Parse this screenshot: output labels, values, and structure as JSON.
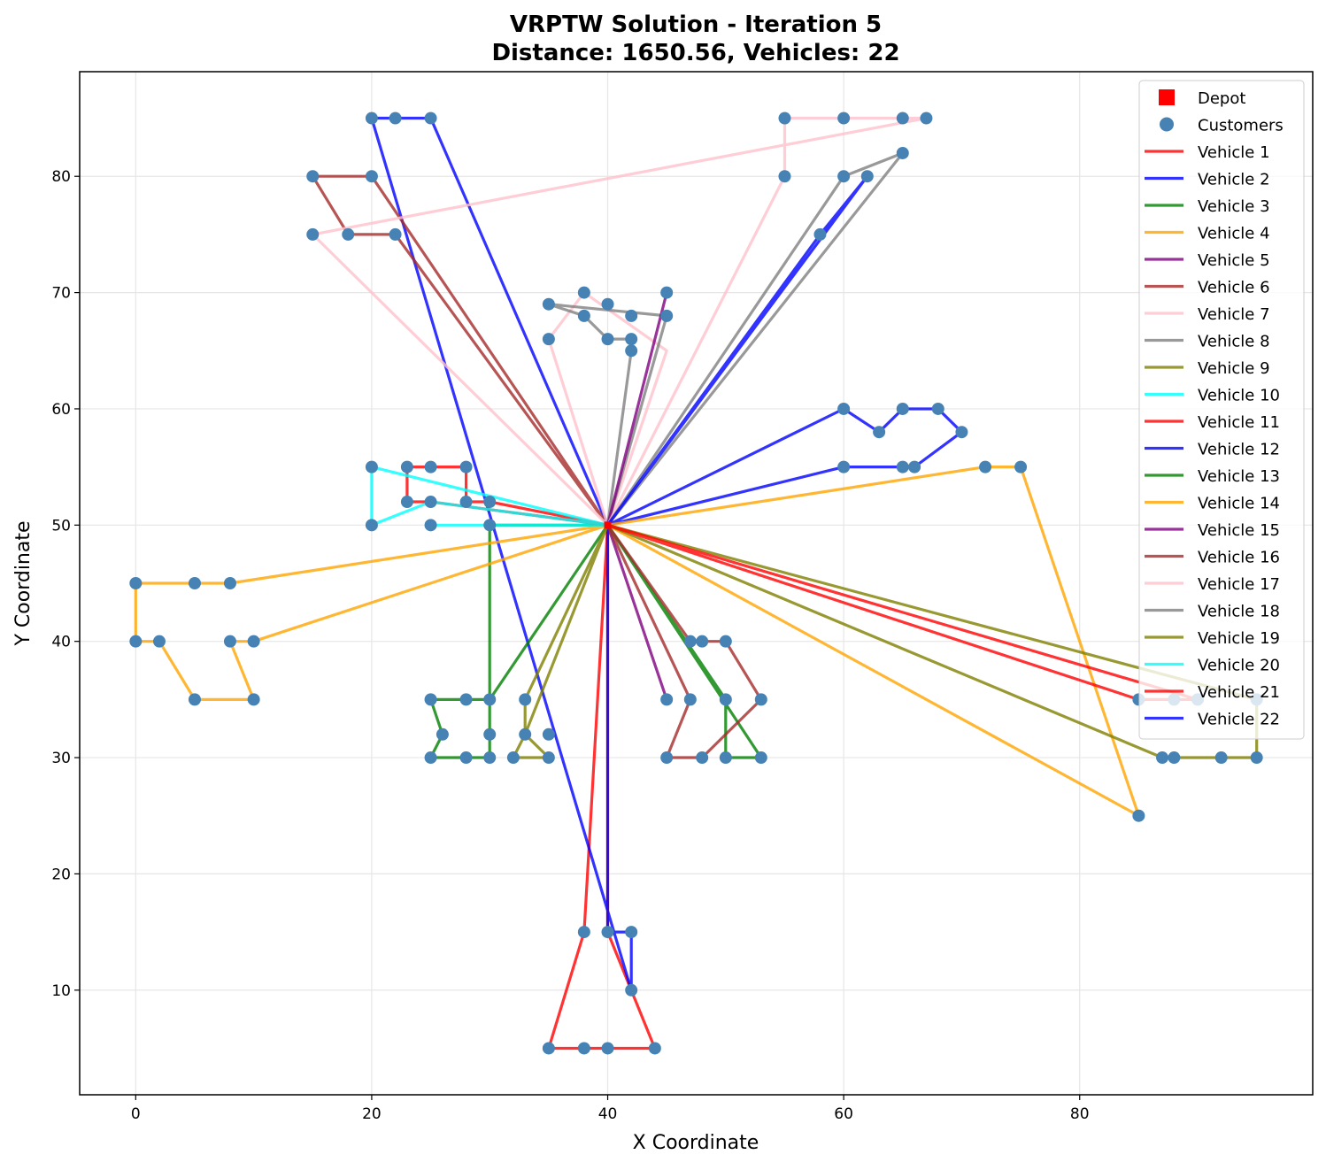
{
  "chart_data": {
    "type": "line",
    "title": "VRPTW Solution - Iteration 5",
    "subtitle": "Distance: 1650.56, Vehicles: 22",
    "xlabel": "X Coordinate",
    "ylabel": "Y Coordinate",
    "xlim": [
      -4.75,
      99.75
    ],
    "ylim": [
      1.0,
      89.0
    ],
    "xticks": [
      0,
      20,
      40,
      60,
      80
    ],
    "yticks": [
      10,
      20,
      30,
      40,
      50,
      60,
      70,
      80
    ],
    "grid": true,
    "legend_position": "top-right",
    "depot": {
      "name": "Depot",
      "x": 40,
      "y": 50,
      "color": "#ff0000"
    },
    "customers": {
      "name": "Customers",
      "color": "#4682b4",
      "points": [
        [
          45,
          68
        ],
        [
          45,
          70
        ],
        [
          42,
          66
        ],
        [
          42,
          68
        ],
        [
          42,
          65
        ],
        [
          40,
          69
        ],
        [
          40,
          66
        ],
        [
          38,
          68
        ],
        [
          38,
          70
        ],
        [
          35,
          66
        ],
        [
          35,
          69
        ],
        [
          25,
          85
        ],
        [
          22,
          75
        ],
        [
          22,
          85
        ],
        [
          20,
          80
        ],
        [
          20,
          85
        ],
        [
          18,
          75
        ],
        [
          15,
          75
        ],
        [
          15,
          80
        ],
        [
          30,
          50
        ],
        [
          30,
          52
        ],
        [
          28,
          52
        ],
        [
          28,
          55
        ],
        [
          25,
          50
        ],
        [
          25,
          52
        ],
        [
          25,
          55
        ],
        [
          23,
          52
        ],
        [
          23,
          55
        ],
        [
          20,
          50
        ],
        [
          20,
          55
        ],
        [
          10,
          35
        ],
        [
          10,
          40
        ],
        [
          8,
          40
        ],
        [
          8,
          45
        ],
        [
          5,
          35
        ],
        [
          5,
          45
        ],
        [
          2,
          40
        ],
        [
          0,
          40
        ],
        [
          0,
          45
        ],
        [
          35,
          30
        ],
        [
          35,
          32
        ],
        [
          33,
          32
        ],
        [
          33,
          35
        ],
        [
          32,
          30
        ],
        [
          30,
          30
        ],
        [
          30,
          32
        ],
        [
          30,
          35
        ],
        [
          28,
          30
        ],
        [
          28,
          35
        ],
        [
          26,
          32
        ],
        [
          25,
          30
        ],
        [
          25,
          35
        ],
        [
          44,
          5
        ],
        [
          42,
          10
        ],
        [
          42,
          15
        ],
        [
          40,
          5
        ],
        [
          40,
          15
        ],
        [
          38,
          5
        ],
        [
          38,
          15
        ],
        [
          35,
          5
        ],
        [
          95,
          30
        ],
        [
          95,
          35
        ],
        [
          92,
          30
        ],
        [
          90,
          35
        ],
        [
          88,
          30
        ],
        [
          88,
          35
        ],
        [
          87,
          30
        ],
        [
          85,
          25
        ],
        [
          85,
          35
        ],
        [
          67,
          85
        ],
        [
          65,
          85
        ],
        [
          65,
          82
        ],
        [
          62,
          80
        ],
        [
          60,
          80
        ],
        [
          60,
          85
        ],
        [
          58,
          75
        ],
        [
          55,
          80
        ],
        [
          55,
          85
        ],
        [
          72,
          55
        ],
        [
          70,
          58
        ],
        [
          68,
          60
        ],
        [
          66,
          55
        ],
        [
          65,
          55
        ],
        [
          65,
          60
        ],
        [
          63,
          58
        ],
        [
          60,
          55
        ],
        [
          60,
          60
        ],
        [
          75,
          55
        ],
        [
          45,
          30
        ],
        [
          45,
          35
        ],
        [
          47,
          35
        ],
        [
          47,
          40
        ],
        [
          48,
          30
        ],
        [
          48,
          40
        ],
        [
          50,
          30
        ],
        [
          50,
          35
        ],
        [
          50,
          40
        ],
        [
          53,
          30
        ],
        [
          53,
          35
        ]
      ]
    },
    "series": [
      {
        "name": "Vehicle 1",
        "color": "#ff0000",
        "points": [
          [
            40,
            50
          ],
          [
            38,
            15
          ],
          [
            35,
            5
          ],
          [
            38,
            5
          ],
          [
            40,
            5
          ],
          [
            44,
            5
          ],
          [
            40,
            15
          ],
          [
            40,
            50
          ]
        ]
      },
      {
        "name": "Vehicle 2",
        "color": "#0000ff",
        "points": [
          [
            40,
            50
          ],
          [
            25,
            85
          ],
          [
            22,
            85
          ],
          [
            20,
            85
          ],
          [
            42,
            10
          ],
          [
            42,
            15
          ],
          [
            40,
            15
          ],
          [
            40,
            50
          ]
        ]
      },
      {
        "name": "Vehicle 3",
        "color": "#008000",
        "points": [
          [
            40,
            50
          ],
          [
            30,
            35
          ],
          [
            28,
            35
          ],
          [
            25,
            35
          ],
          [
            26,
            32
          ],
          [
            25,
            30
          ],
          [
            28,
            30
          ],
          [
            30,
            30
          ],
          [
            30,
            32
          ],
          [
            30,
            50
          ],
          [
            40,
            50
          ]
        ]
      },
      {
        "name": "Vehicle 4",
        "color": "#ffa500",
        "points": [
          [
            40,
            50
          ],
          [
            8,
            45
          ],
          [
            5,
            45
          ],
          [
            0,
            45
          ],
          [
            0,
            40
          ],
          [
            2,
            40
          ],
          [
            5,
            35
          ],
          [
            10,
            35
          ],
          [
            8,
            40
          ],
          [
            10,
            40
          ],
          [
            40,
            50
          ]
        ]
      },
      {
        "name": "Vehicle 5",
        "color": "#800080",
        "points": [
          [
            40,
            50
          ],
          [
            45,
            35
          ],
          [
            40,
            50
          ]
        ]
      },
      {
        "name": "Vehicle 6",
        "color": "#a52a2a",
        "points": [
          [
            40,
            50
          ],
          [
            22,
            75
          ],
          [
            18,
            75
          ],
          [
            15,
            80
          ],
          [
            20,
            80
          ],
          [
            40,
            50
          ]
        ]
      },
      {
        "name": "Vehicle 7",
        "color": "#ffc0cb",
        "points": [
          [
            40,
            50
          ],
          [
            45,
            65
          ],
          [
            38,
            70
          ],
          [
            35,
            66
          ],
          [
            40,
            50
          ]
        ]
      },
      {
        "name": "Vehicle 8",
        "color": "#808080",
        "points": [
          [
            40,
            50
          ],
          [
            42,
            65
          ],
          [
            42,
            66
          ],
          [
            40,
            66
          ],
          [
            38,
            68
          ],
          [
            35,
            69
          ],
          [
            45,
            68
          ],
          [
            40,
            50
          ]
        ]
      },
      {
        "name": "Vehicle 9",
        "color": "#808000",
        "points": [
          [
            40,
            50
          ],
          [
            33,
            35
          ],
          [
            33,
            32
          ],
          [
            35,
            30
          ],
          [
            32,
            30
          ],
          [
            33,
            32
          ],
          [
            40,
            50
          ]
        ]
      },
      {
        "name": "Vehicle 10",
        "color": "#00ffff",
        "points": [
          [
            40,
            50
          ],
          [
            25,
            50
          ],
          [
            40,
            50
          ]
        ]
      },
      {
        "name": "Vehicle 11",
        "color": "#ff0000",
        "points": [
          [
            40,
            50
          ],
          [
            30,
            52
          ],
          [
            28,
            52
          ],
          [
            28,
            55
          ],
          [
            25,
            55
          ],
          [
            23,
            55
          ],
          [
            23,
            52
          ],
          [
            25,
            52
          ],
          [
            40,
            50
          ]
        ]
      },
      {
        "name": "Vehicle 12",
        "color": "#0000ff",
        "points": [
          [
            40,
            50
          ],
          [
            60,
            55
          ],
          [
            65,
            55
          ],
          [
            66,
            55
          ],
          [
            70,
            58
          ],
          [
            68,
            60
          ],
          [
            65,
            60
          ],
          [
            63,
            58
          ],
          [
            60,
            60
          ],
          [
            40,
            50
          ]
        ]
      },
      {
        "name": "Vehicle 13",
        "color": "#008000",
        "points": [
          [
            40,
            50
          ],
          [
            50,
            35
          ],
          [
            50,
            30
          ],
          [
            53,
            30
          ],
          [
            40,
            50
          ]
        ]
      },
      {
        "name": "Vehicle 14",
        "color": "#ffa500",
        "points": [
          [
            40,
            50
          ],
          [
            72,
            55
          ],
          [
            75,
            55
          ],
          [
            85,
            25
          ],
          [
            40,
            50
          ]
        ]
      },
      {
        "name": "Vehicle 15",
        "color": "#800080",
        "points": [
          [
            40,
            50
          ],
          [
            45,
            70
          ],
          [
            40,
            50
          ]
        ]
      },
      {
        "name": "Vehicle 16",
        "color": "#a52a2a",
        "points": [
          [
            40,
            50
          ],
          [
            47,
            40
          ],
          [
            48,
            40
          ],
          [
            50,
            40
          ],
          [
            53,
            35
          ],
          [
            48,
            30
          ],
          [
            45,
            30
          ],
          [
            47,
            35
          ],
          [
            40,
            50
          ]
        ]
      },
      {
        "name": "Vehicle 17",
        "color": "#ffc0cb",
        "points": [
          [
            40,
            50
          ],
          [
            55,
            80
          ],
          [
            55,
            85
          ],
          [
            60,
            85
          ],
          [
            65,
            85
          ],
          [
            67,
            85
          ],
          [
            15,
            75
          ],
          [
            40,
            50
          ]
        ]
      },
      {
        "name": "Vehicle 18",
        "color": "#808080",
        "points": [
          [
            40,
            50
          ],
          [
            60,
            80
          ],
          [
            65,
            82
          ],
          [
            40,
            50
          ]
        ]
      },
      {
        "name": "Vehicle 19",
        "color": "#808000",
        "points": [
          [
            40,
            50
          ],
          [
            95,
            35
          ],
          [
            95,
            30
          ],
          [
            92,
            30
          ],
          [
            88,
            30
          ],
          [
            87,
            30
          ],
          [
            40,
            50
          ]
        ]
      },
      {
        "name": "Vehicle 20",
        "color": "#00ffff",
        "points": [
          [
            40,
            50
          ],
          [
            20,
            55
          ],
          [
            20,
            50
          ],
          [
            25,
            52
          ],
          [
            40,
            50
          ]
        ]
      },
      {
        "name": "Vehicle 21",
        "color": "#ff0000",
        "points": [
          [
            40,
            50
          ],
          [
            85,
            35
          ],
          [
            88,
            35
          ],
          [
            90,
            35
          ],
          [
            40,
            50
          ]
        ]
      },
      {
        "name": "Vehicle 22",
        "color": "#0000ff",
        "points": [
          [
            40,
            50
          ],
          [
            58,
            75
          ],
          [
            62,
            80
          ],
          [
            40,
            50
          ]
        ]
      }
    ]
  }
}
